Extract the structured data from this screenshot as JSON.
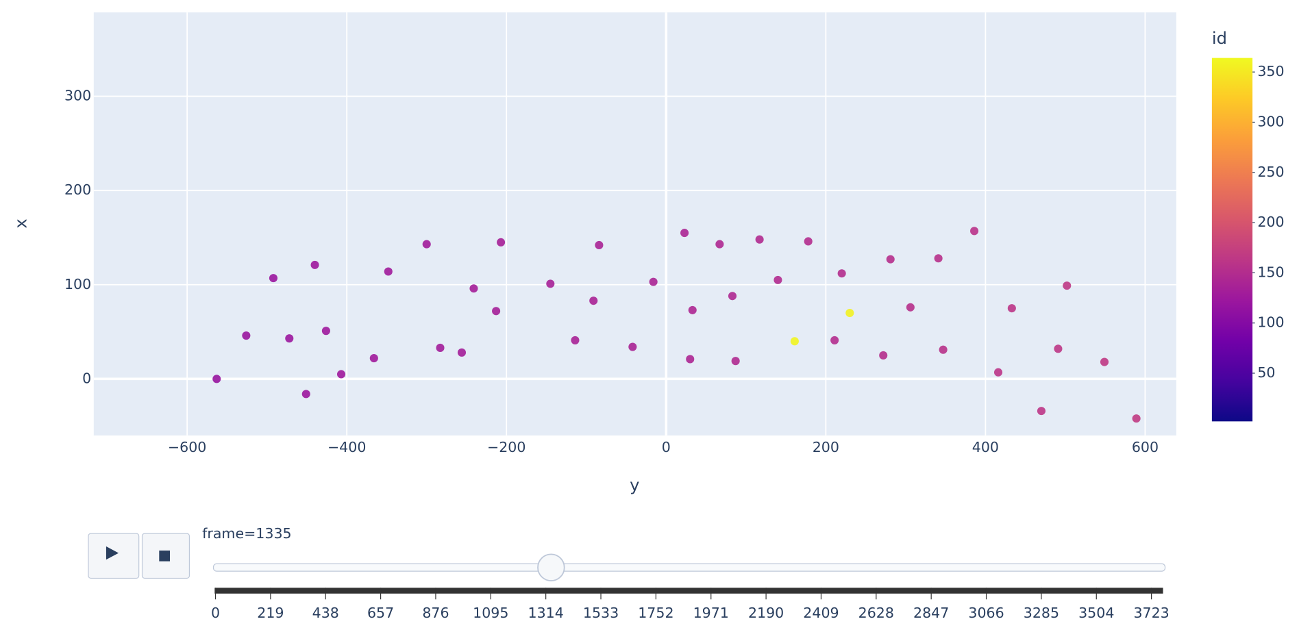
{
  "chart_data": {
    "type": "scatter",
    "x_label": "y",
    "y_label": "x",
    "colorbar_title": "id",
    "x": [
      -563,
      -526,
      -492,
      -472,
      -451,
      -440,
      -426,
      -407,
      -366,
      -348,
      -300,
      -283,
      -256,
      -241,
      -213,
      -207,
      -145,
      -114,
      -91,
      -84,
      -42,
      -16,
      23,
      30,
      33,
      67,
      83,
      87,
      117,
      140,
      161,
      178,
      211,
      220,
      230,
      272,
      281,
      306,
      341,
      347,
      386,
      416,
      433,
      470,
      491,
      502,
      549,
      589
    ],
    "y": [
      0,
      46,
      107,
      43,
      -16,
      121,
      51,
      5,
      22,
      114,
      143,
      33,
      28,
      96,
      72,
      145,
      101,
      41,
      83,
      142,
      34,
      103,
      155,
      21,
      73,
      143,
      88,
      19,
      148,
      105,
      40,
      146,
      41,
      112,
      70,
      25,
      127,
      76,
      128,
      31,
      157,
      7,
      75,
      -34,
      32,
      99,
      18,
      -42
    ],
    "color_values": [
      118,
      120,
      121,
      122,
      123,
      124,
      125,
      126,
      127,
      128,
      129,
      130,
      131,
      132,
      133,
      134,
      135,
      136,
      137,
      138,
      139,
      140,
      141,
      142,
      143,
      144,
      145,
      146,
      147,
      148,
      361,
      149,
      150,
      151,
      358,
      152,
      153,
      154,
      155,
      156,
      158,
      160,
      161,
      162,
      163,
      164,
      166,
      168
    ],
    "colorscale": [
      "#0d0887",
      "#46039f",
      "#7201a8",
      "#9c179e",
      "#bd3786",
      "#d8576b",
      "#ed7953",
      "#fb9f3a",
      "#fdca26",
      "#f0f921"
    ],
    "clim": [
      2,
      364
    ],
    "cticks": [
      50,
      100,
      150,
      200,
      250,
      300,
      350
    ],
    "xlim": [
      -717,
      639
    ],
    "ylim": [
      -60,
      389
    ],
    "xticks": [
      {
        "value": -600,
        "label": "−600"
      },
      {
        "value": -400,
        "label": "−400"
      },
      {
        "value": -200,
        "label": "−200"
      },
      0,
      200,
      400,
      600
    ],
    "yticks": [
      0,
      100,
      200,
      300
    ],
    "grid": true,
    "slider": {
      "current_label": "frame=1335",
      "current": 1335,
      "ticks": [
        0,
        219,
        438,
        657,
        876,
        1095,
        1314,
        1533,
        1752,
        1971,
        2190,
        2409,
        2628,
        2847,
        3066,
        3285,
        3504,
        3723
      ]
    }
  }
}
